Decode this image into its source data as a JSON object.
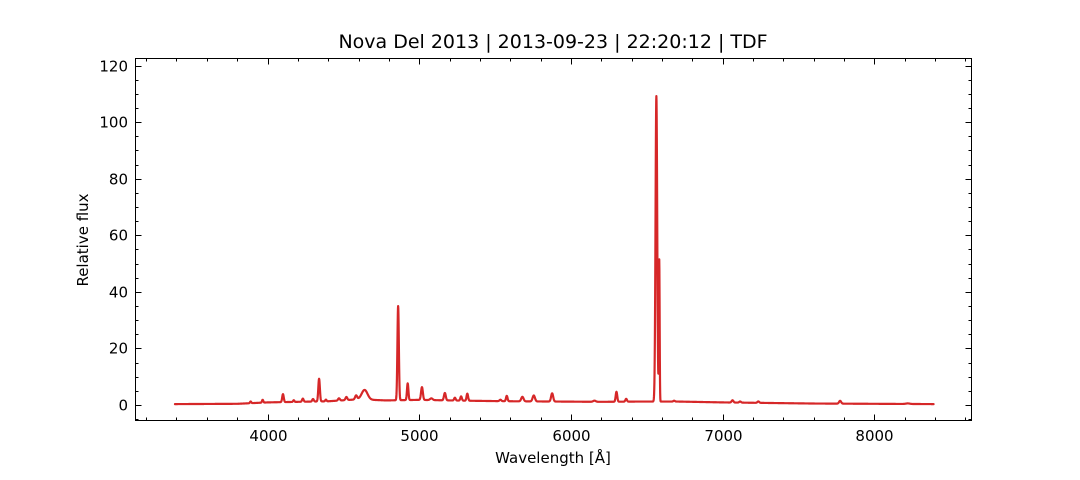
{
  "chart_data": {
    "type": "line",
    "title": "Nova Del 2013 | 2013-09-23 | 22:20:12 | TDF",
    "xlabel": "Wavelength [Å]",
    "ylabel": "Relative flux",
    "xlim": [
      3130,
      8640
    ],
    "ylim": [
      -5.5,
      122.5
    ],
    "x_ticks": [
      4000,
      5000,
      6000,
      7000,
      8000
    ],
    "x_tick_labels": [
      "4000",
      "5000",
      "6000",
      "7000",
      "8000"
    ],
    "x_minor_step": 200,
    "y_ticks": [
      0,
      20,
      40,
      60,
      80,
      100,
      120
    ],
    "y_tick_labels": [
      "0",
      "20",
      "40",
      "60",
      "80",
      "100",
      "120"
    ],
    "y_minor_step": 5,
    "ticks_direction": "in",
    "ticks_on_all_sides": true,
    "grid": false,
    "legend": "none",
    "line_color": "#d62728",
    "series": [
      {
        "x_range": [
          3390,
          8390
        ],
        "continuum": [
          [
            3390,
            0.3
          ],
          [
            3800,
            0.4
          ],
          [
            4000,
            0.9
          ],
          [
            4200,
            1.1
          ],
          [
            4400,
            1.3
          ],
          [
            4600,
            2.0
          ],
          [
            4780,
            1.6
          ],
          [
            5000,
            1.8
          ],
          [
            5300,
            1.5
          ],
          [
            5600,
            1.3
          ],
          [
            5900,
            1.2
          ],
          [
            6200,
            1.1
          ],
          [
            6450,
            1.2
          ],
          [
            6700,
            1.2
          ],
          [
            7000,
            0.9
          ],
          [
            7300,
            0.7
          ],
          [
            7600,
            0.5
          ],
          [
            8000,
            0.4
          ],
          [
            8390,
            0.3
          ]
        ],
        "emission_lines": [
          {
            "center": 3889,
            "peak": 0.6,
            "fwhm": 10
          },
          {
            "center": 3968,
            "peak": 1.0,
            "fwhm": 10
          },
          {
            "center": 4102,
            "peak": 2.8,
            "fwhm": 12
          },
          {
            "center": 4173,
            "peak": 0.6,
            "fwhm": 10
          },
          {
            "center": 4233,
            "peak": 1.1,
            "fwhm": 12
          },
          {
            "center": 4300,
            "peak": 0.9,
            "fwhm": 12
          },
          {
            "center": 4340,
            "peak": 8.0,
            "fwhm": 12
          },
          {
            "center": 4385,
            "peak": 0.6,
            "fwhm": 10
          },
          {
            "center": 4471,
            "peak": 0.8,
            "fwhm": 14
          },
          {
            "center": 4520,
            "peak": 1.1,
            "fwhm": 14
          },
          {
            "center": 4584,
            "peak": 1.4,
            "fwhm": 16
          },
          {
            "center": 4640,
            "peak": 3.4,
            "fwhm": 45
          },
          {
            "center": 4861,
            "peak": 33.3,
            "fwhm": 11
          },
          {
            "center": 4924,
            "peak": 5.9,
            "fwhm": 11
          },
          {
            "center": 5018,
            "peak": 4.5,
            "fwhm": 14
          },
          {
            "center": 5080,
            "peak": 0.6,
            "fwhm": 20
          },
          {
            "center": 5169,
            "peak": 2.6,
            "fwhm": 14
          },
          {
            "center": 5235,
            "peak": 1.0,
            "fwhm": 12
          },
          {
            "center": 5276,
            "peak": 1.5,
            "fwhm": 12
          },
          {
            "center": 5317,
            "peak": 2.5,
            "fwhm": 12
          },
          {
            "center": 5535,
            "peak": 0.5,
            "fwhm": 14
          },
          {
            "center": 5577,
            "peak": 1.9,
            "fwhm": 12
          },
          {
            "center": 5680,
            "peak": 1.6,
            "fwhm": 18
          },
          {
            "center": 5755,
            "peak": 2.1,
            "fwhm": 18
          },
          {
            "center": 5876,
            "peak": 2.9,
            "fwhm": 16
          },
          {
            "center": 6155,
            "peak": 0.4,
            "fwhm": 20
          },
          {
            "center": 6300,
            "peak": 3.5,
            "fwhm": 12
          },
          {
            "center": 6364,
            "peak": 1.0,
            "fwhm": 12
          },
          {
            "center": 6563,
            "peak": 108.0,
            "fwhm": 13
          },
          {
            "center": 6582,
            "peak": 50.0,
            "fwhm": 6
          },
          {
            "center": 6680,
            "peak": 0.3,
            "fwhm": 12
          },
          {
            "center": 7065,
            "peak": 0.8,
            "fwhm": 14
          },
          {
            "center": 7115,
            "peak": 0.4,
            "fwhm": 14
          },
          {
            "center": 7235,
            "peak": 0.5,
            "fwhm": 14
          },
          {
            "center": 7774,
            "peak": 1.0,
            "fwhm": 16
          },
          {
            "center": 8220,
            "peak": 0.2,
            "fwhm": 30
          }
        ]
      }
    ]
  }
}
